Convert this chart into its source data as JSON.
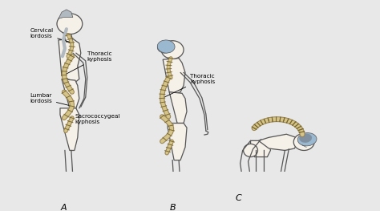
{
  "bg_color": "#e8e8e8",
  "line_color": "#555555",
  "spine_color": "#d4c48a",
  "spine_outline": "#9a8450",
  "spine_dark": "#7a6830",
  "body_fill": "#f5f0e8",
  "blue_highlight": "#9ab8d0",
  "hair_color": "#b0b8c0",
  "label_color": "#222222",
  "figsize": [
    4.74,
    2.63
  ],
  "dpi": 100,
  "labels": [
    "Cervical\nlordosis",
    "Thoracic\nkyphosis",
    "Lumbar\nlordosis",
    "Sacrococcygeal\nkyphosis"
  ]
}
